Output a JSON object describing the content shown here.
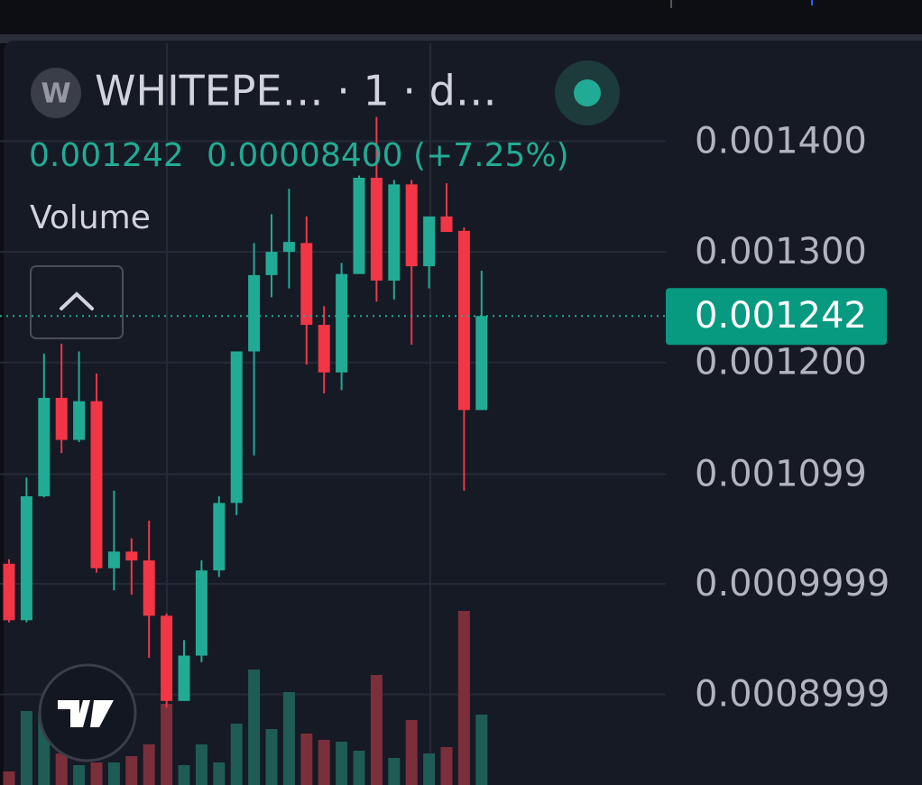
{
  "chart_data": {
    "type": "candlestick",
    "title": "WHITEPE… · 1 · d…",
    "logo": "W",
    "change": "0.00008400 (+7.25%)",
    "indicator": "Volume",
    "last_price": 0.001242,
    "up_color": "#22ab94",
    "down_color": "#f23645",
    "volume_up_color": "#1f5c55",
    "volume_down_color": "#7b2f3b",
    "ylim": [
      0.000818,
      0.001491
    ],
    "yticks": [
      {
        "value": 0.0014,
        "label": "0.001400"
      },
      {
        "value": 0.0013,
        "label": "0.001300"
      },
      {
        "value": 0.0012,
        "label": "0.001200"
      },
      0.001099,
      0.0009999,
      0.0008999
    ],
    "grid": true,
    "open": [
      0.001018,
      0.000967,
      0.001079,
      0.001168,
      0.00113,
      0.001165,
      0.001014,
      0.001029,
      0.001021,
      0.000971,
      0.000894,
      0.000935,
      0.001012,
      0.001073,
      0.00121,
      0.001279,
      0.0013,
      0.001308,
      0.001234,
      0.001191,
      0.00128,
      0.001367,
      0.001274,
      0.001361,
      0.001287,
      0.001332,
      0.001319,
      0.001157
    ],
    "high": [
      0.001022,
      0.001096,
      0.001208,
      0.001217,
      0.00121,
      0.00119,
      0.001084,
      0.001041,
      0.001057,
      0.000973,
      0.000949,
      0.001021,
      0.001079,
      0.00121,
      0.001308,
      0.001334,
      0.001357,
      0.001332,
      0.001251,
      0.00129,
      0.001369,
      0.001422,
      0.001365,
      0.001365,
      0.001332,
      0.001362,
      0.001322,
      0.001283
    ],
    "low": [
      0.000965,
      0.000965,
      0.001078,
      0.001118,
      0.001128,
      0.00101,
      0.000994,
      0.00099,
      0.000933,
      0.000888,
      0.000894,
      0.000929,
      0.001006,
      0.001062,
      0.001116,
      0.001259,
      0.001267,
      0.001198,
      0.001172,
      0.001175,
      0.00128,
      0.001255,
      0.001257,
      0.001216,
      0.001267,
      0.001318,
      0.001084,
      0.001157
    ],
    "close": [
      0.000967,
      0.001079,
      0.001168,
      0.00113,
      0.001165,
      0.001014,
      0.001029,
      0.001021,
      0.000971,
      0.000894,
      0.000935,
      0.001012,
      0.001073,
      0.00121,
      0.001279,
      0.0013,
      0.001309,
      0.001234,
      0.001191,
      0.00128,
      0.001367,
      0.001274,
      0.001361,
      0.001287,
      0.001332,
      0.001318,
      0.001157,
      0.001242
    ],
    "volume": [
      15,
      82,
      80,
      35,
      22,
      25,
      25,
      32,
      45,
      90,
      22,
      45,
      25,
      68,
      128,
      62,
      103,
      57,
      50,
      48,
      38,
      122,
      30,
      72,
      35,
      42,
      193,
      78
    ],
    "volume_ylim": [
      0,
      200
    ]
  }
}
